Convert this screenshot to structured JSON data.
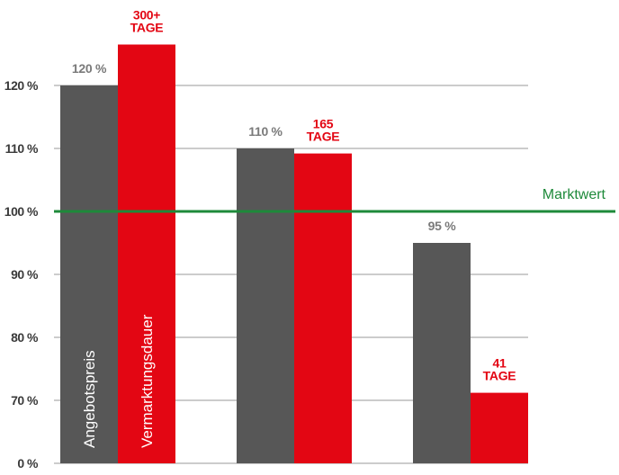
{
  "chart_data": {
    "type": "bar",
    "categories": [
      "",
      "",
      ""
    ],
    "series": [
      {
        "name": "Angebotspreis",
        "color": "#575757",
        "values": [
          120,
          110,
          95
        ],
        "labels": [
          [
            "120 %"
          ],
          [
            "110 %"
          ],
          [
            "95 %"
          ]
        ]
      },
      {
        "name": "Vermarktungsdauer",
        "color": "#e30613",
        "values": [
          126.5,
          109.2,
          71.2
        ],
        "labels": [
          [
            "300+",
            "TAGE"
          ],
          [
            "165",
            "TAGE"
          ],
          [
            "41",
            "TAGE"
          ]
        ]
      }
    ],
    "yticks": [
      "0 %",
      "70 %",
      "80 %",
      "90 %",
      "100 %",
      "110 %",
      "120 %"
    ],
    "ytick_values": [
      0,
      70,
      80,
      90,
      100,
      110,
      120
    ],
    "ylim": [
      65,
      130
    ],
    "axis_break": true,
    "reference_line": {
      "value": 100,
      "label": "Marktwert",
      "color": "#1e8a3a"
    },
    "gridlines": true,
    "grid_color": "#9a9a9a",
    "title": "",
    "xlabel": "",
    "ylabel": ""
  }
}
